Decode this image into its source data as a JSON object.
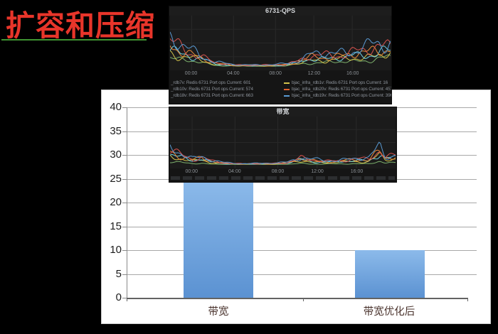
{
  "slide": {
    "title": "扩容和压缩",
    "colors": {
      "background": "#000000",
      "title": "#e8352a",
      "underline": "#3f9431",
      "bar_fill_top": "#8cbaea",
      "bar_fill_bottom": "#5b92d2",
      "grafana_bg": "#151515",
      "series_blue": "#5a9bd4",
      "series_red": "#d9534f",
      "series_orange": "#e8883a",
      "series_cyan": "#6ed0e0",
      "series_yellow": "#d2c34a",
      "series_green": "#7eb26d"
    }
  },
  "chart_data": [
    {
      "type": "line",
      "title": "6731-QPS",
      "x_ticks": [
        "00:00",
        "04:00",
        "08:00",
        "12:00",
        "16:00"
      ],
      "legend_position": "bottom",
      "grid": true,
      "shape_note": "high at both edges, low through 04:00-08:00, rising after 12:00",
      "envelope": [
        [
          0,
          0.95
        ],
        [
          0.05,
          0.7
        ],
        [
          0.12,
          0.5
        ],
        [
          0.2,
          0.15
        ],
        [
          0.3,
          0.07
        ],
        [
          0.45,
          0.06
        ],
        [
          0.52,
          0.1
        ],
        [
          0.58,
          0.22
        ],
        [
          0.64,
          0.4
        ],
        [
          0.72,
          0.45
        ],
        [
          0.8,
          0.5
        ],
        [
          0.88,
          0.6
        ],
        [
          0.95,
          0.8
        ],
        [
          1,
          0.85
        ]
      ],
      "series": [
        {
          "name": "green",
          "color": "#7eb26d",
          "amp": 0.28,
          "seed": 6
        },
        {
          "name": "yellow",
          "color": "#d2c34a",
          "amp": 0.42,
          "seed": 5
        },
        {
          "name": "cyan",
          "color": "#6ed0e0",
          "amp": 0.52,
          "seed": 4
        },
        {
          "name": "orange",
          "color": "#e8883a",
          "amp": 0.62,
          "seed": 3
        },
        {
          "name": "red",
          "color": "#d9534f",
          "amp": 0.72,
          "seed": 2
        },
        {
          "name": "blue",
          "color": "#5a9bd4",
          "amp": 0.82,
          "seed": 1
        }
      ],
      "legend_rows": [
        [
          {
            "marker": null,
            "text": "_rdb7v: Redis 6731 Port ops Current: 601"
          },
          {
            "marker": "#d2c34a",
            "text": "bjac_infra_rdb1v: Redis 6731 Port ops Current: 16"
          }
        ],
        [
          {
            "marker": null,
            "text": "_rdb10v: Redis 6731 Port ops Current: 574"
          },
          {
            "marker": "#e0612e",
            "text": "bjac_infra_rdb20v: Redis 6731 Port ops Current: 457"
          }
        ],
        [
          {
            "marker": null,
            "text": "_rdb18v: Redis 6731 Port ops Current: 663"
          },
          {
            "marker": "#5a9bd4",
            "text": "bjac_infra_rdb19v: Redis 6731 Port ops Current: 396"
          }
        ]
      ]
    },
    {
      "type": "line",
      "title": "带宽",
      "x_ticks": [
        "00:00",
        "04:00",
        "08:00",
        "12:00",
        "16:00"
      ],
      "grid": true,
      "shape_note": "high at edges, low in middle, bump near 12:00, sharp spike near right edge",
      "envelope": [
        [
          0,
          0.75
        ],
        [
          0.05,
          0.55
        ],
        [
          0.1,
          0.3
        ],
        [
          0.14,
          0.38
        ],
        [
          0.18,
          0.2
        ],
        [
          0.24,
          0.1
        ],
        [
          0.32,
          0.06
        ],
        [
          0.45,
          0.07
        ],
        [
          0.52,
          0.13
        ],
        [
          0.58,
          0.35
        ],
        [
          0.62,
          0.25
        ],
        [
          0.68,
          0.2
        ],
        [
          0.75,
          0.22
        ],
        [
          0.82,
          0.28
        ],
        [
          0.88,
          0.3
        ],
        [
          0.93,
          0.85
        ],
        [
          0.955,
          0.4
        ],
        [
          1,
          0.5
        ]
      ],
      "series": [
        {
          "name": "green",
          "color": "#7eb26d",
          "amp": 0.12,
          "seed": 16
        },
        {
          "name": "yellow",
          "color": "#d2c34a",
          "amp": 0.34,
          "seed": 15
        },
        {
          "name": "cyan",
          "color": "#6ed0e0",
          "amp": 0.42,
          "seed": 14
        },
        {
          "name": "orange",
          "color": "#e8883a",
          "amp": 0.5,
          "seed": 13
        },
        {
          "name": "red",
          "color": "#d9534f",
          "amp": 0.56,
          "seed": 12
        },
        {
          "name": "blue",
          "color": "#5a9bd4",
          "amp": 0.64,
          "seed": 11
        }
      ],
      "legend_rows": []
    },
    {
      "type": "bar",
      "title": "",
      "xlabel": "",
      "ylabel": "",
      "categories": [
        "带宽",
        "带宽优化后"
      ],
      "values": [
        25,
        10
      ],
      "ylim": [
        0,
        40
      ],
      "ytick_step": 5,
      "ytick_labels": [
        "0",
        "5",
        "10",
        "15",
        "20",
        "25",
        "30",
        "35",
        "40"
      ],
      "grid": true,
      "legend_position": "none"
    }
  ]
}
